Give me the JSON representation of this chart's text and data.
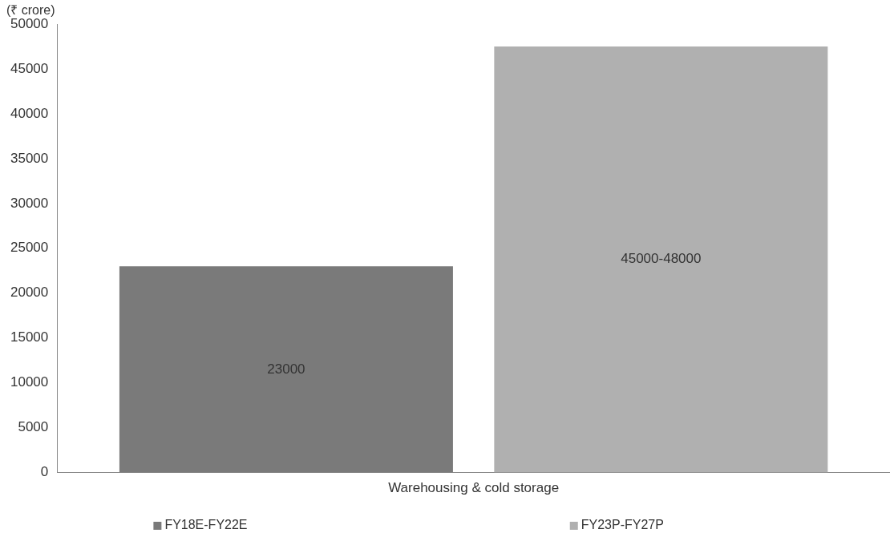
{
  "chart_data": {
    "type": "bar",
    "ylabel": "(₹ crore)",
    "categories": [
      "Warehousing & cold storage"
    ],
    "series": [
      {
        "name": "FY18E-FY22E",
        "color": "#7a7a7a",
        "values": [
          23000
        ],
        "value_labels": [
          "23000"
        ]
      },
      {
        "name": "FY23P-FY27P",
        "color": "#b0b0b0",
        "values": [
          47500
        ],
        "value_labels": [
          "45000-48000"
        ]
      }
    ],
    "ylim": [
      0,
      50000
    ],
    "yticks": [
      0,
      5000,
      10000,
      15000,
      20000,
      25000,
      30000,
      35000,
      40000,
      45000,
      50000
    ],
    "grid": false,
    "legend": "bottom"
  }
}
